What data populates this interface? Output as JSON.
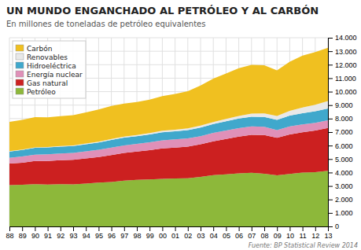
{
  "chart_data": {
    "type": "area",
    "stacked": true,
    "title": "UN MUNDO ENGANCHADO AL PETRÓLEO Y AL CARBÓN",
    "subtitle": "En millones de toneladas de petróleo equivalentes",
    "source": "Fuente: BP Statistical Review 2014",
    "categories": [
      "88",
      "89",
      "90",
      "91",
      "92",
      "93",
      "94",
      "95",
      "96",
      "97",
      "98",
      "99",
      "00",
      "01",
      "02",
      "03",
      "04",
      "05",
      "06",
      "07",
      "08",
      "09",
      "10",
      "11",
      "12",
      "13"
    ],
    "series": [
      {
        "name": "Petróleo",
        "color": "#8db83a",
        "values": [
          3060,
          3090,
          3130,
          3100,
          3130,
          3120,
          3180,
          3250,
          3300,
          3400,
          3450,
          3480,
          3530,
          3560,
          3580,
          3680,
          3800,
          3870,
          3940,
          3980,
          3910,
          3790,
          3900,
          4000,
          4030,
          4130
        ]
      },
      {
        "name": "Gas natural",
        "color": "#cc2020",
        "values": [
          1600,
          1640,
          1730,
          1760,
          1780,
          1820,
          1870,
          1900,
          1990,
          2050,
          2100,
          2180,
          2260,
          2290,
          2340,
          2410,
          2520,
          2620,
          2720,
          2820,
          2870,
          2790,
          2930,
          2990,
          3090,
          3180
        ]
      },
      {
        "name": "Energía nuclear",
        "color": "#e090b8",
        "values": [
          430,
          460,
          470,
          490,
          500,
          510,
          520,
          540,
          560,
          560,
          570,
          580,
          600,
          610,
          610,
          610,
          620,
          630,
          630,
          620,
          610,
          560,
          590,
          580,
          560,
          560
        ]
      },
      {
        "name": "Hidroeléctrica",
        "color": "#40a8cc",
        "values": [
          470,
          490,
          500,
          510,
          510,
          510,
          530,
          540,
          570,
          580,
          570,
          580,
          590,
          600,
          620,
          640,
          660,
          680,
          710,
          720,
          730,
          760,
          800,
          830,
          860,
          880
        ]
      },
      {
        "name": "Renovables",
        "color": "#e8e8e8",
        "values": [
          20,
          25,
          30,
          35,
          40,
          45,
          55,
          60,
          70,
          80,
          90,
          100,
          115,
          120,
          130,
          140,
          150,
          170,
          200,
          230,
          260,
          290,
          350,
          420,
          490,
          560
        ]
      },
      {
        "name": "Carbón",
        "color": "#f0c020",
        "values": [
          2180,
          2200,
          2250,
          2200,
          2220,
          2250,
          2300,
          2380,
          2450,
          2450,
          2450,
          2480,
          2570,
          2650,
          2760,
          2980,
          3220,
          3380,
          3540,
          3620,
          3580,
          3390,
          3650,
          3850,
          3900,
          3950
        ]
      }
    ],
    "ylim": [
      0,
      14000
    ],
    "yticks": [
      0,
      {
        "value": 1000,
        "label": "1.000"
      },
      {
        "value": 2000,
        "label": "2.000"
      },
      {
        "value": 3000,
        "label": "3.000"
      },
      {
        "value": 4000,
        "label": "4.000"
      },
      {
        "value": 5000,
        "label": "5.000"
      },
      {
        "value": 6000,
        "label": "6.000"
      },
      {
        "value": 7000,
        "label": "7.000"
      },
      {
        "value": 8000,
        "label": "8.000"
      },
      {
        "value": 9000,
        "label": "9.000"
      },
      {
        "value": 10000,
        "label": "10.000"
      },
      {
        "value": 11000,
        "label": "11.000"
      },
      {
        "value": 12000,
        "label": "12.000"
      },
      {
        "value": 13000,
        "label": "13.000"
      },
      {
        "value": 14000,
        "label": "14.000"
      }
    ],
    "grid": true,
    "legend": "upper left"
  }
}
